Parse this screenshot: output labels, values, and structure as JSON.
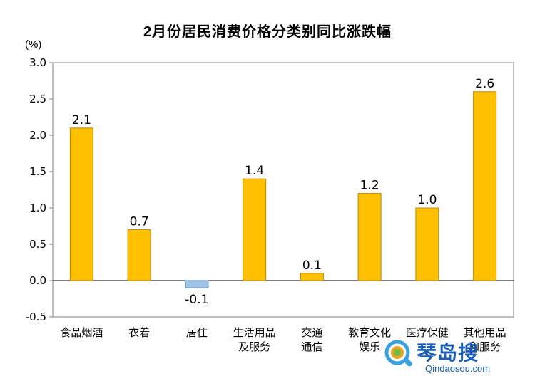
{
  "chart_data": {
    "type": "bar",
    "title": "2月份居民消费价格分类别同比涨跌幅",
    "unit_label": "(%)",
    "categories": [
      [
        "食品烟酒"
      ],
      [
        "衣着"
      ],
      [
        "居住"
      ],
      [
        "生活用品",
        "及服务"
      ],
      [
        "交通",
        "通信"
      ],
      [
        "教育文化",
        "娱乐"
      ],
      [
        "医疗保健"
      ],
      [
        "其他用品",
        "和服务"
      ]
    ],
    "values": [
      2.1,
      0.7,
      -0.1,
      1.4,
      0.1,
      1.2,
      1.0,
      2.6
    ],
    "data_labels": [
      "2.1",
      "0.7",
      "-0.1",
      "1.4",
      "0.1",
      "1.2",
      "1.0",
      "2.6"
    ],
    "ylim": [
      -0.5,
      3.0
    ],
    "yticks": [
      "3.0",
      "2.5",
      "2.0",
      "1.5",
      "1.0",
      "0.5",
      "0.0",
      "-0.5"
    ],
    "ytick_values": [
      3.0,
      2.5,
      2.0,
      1.5,
      1.0,
      0.5,
      0.0,
      -0.5
    ],
    "grid": false,
    "colors": {
      "positive": "#FFC000",
      "positive_edge": "#B8860B",
      "negative": "#9DC3E6",
      "negative_edge": "#5B86B5",
      "axis": "#000000"
    }
  },
  "watermark": {
    "name": "琴岛搜",
    "url": "Qindaosou.com"
  }
}
